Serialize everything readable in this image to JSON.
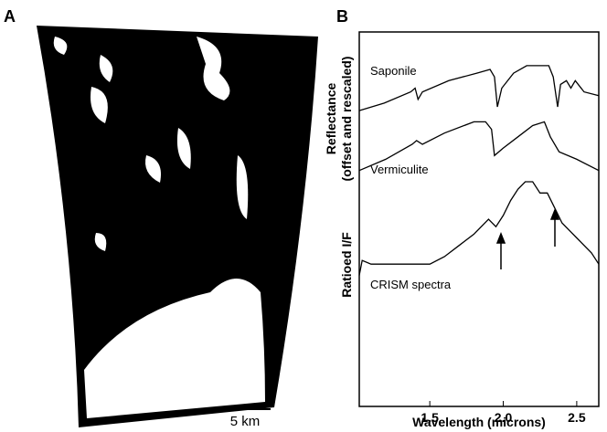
{
  "panel_a": {
    "label": "A",
    "scale_bar": "5 km"
  },
  "chart_data": {
    "type": "line",
    "label": "B",
    "x_label": "Wavelength (microns)",
    "y_label": [
      "Reflectance",
      "(offset and rescaled)"
    ],
    "y2_label": "Ratioed I/F",
    "xlim": [
      1.02,
      2.65
    ],
    "ylim": [
      0,
      100
    ],
    "xticks": [
      1.5,
      {
        "value": 2.0,
        "label": "2.0"
      },
      2.5
    ],
    "series": [
      {
        "name": "Saponile",
        "color": "#000000",
        "x": [
          1.02,
          1.19,
          1.37,
          1.4,
          1.42,
          1.45,
          1.63,
          1.82,
          1.91,
          1.94,
          1.96,
          1.99,
          2.07,
          2.16,
          2.25,
          2.31,
          2.34,
          2.37,
          2.39,
          2.43,
          2.46,
          2.49,
          2.55,
          2.65
        ],
        "values": [
          79,
          81,
          84,
          85,
          82,
          84,
          87,
          89,
          90,
          88,
          80,
          85,
          89,
          91,
          91,
          91,
          88,
          80,
          86,
          87,
          85,
          87,
          84,
          83
        ]
      },
      {
        "name": "Vermiculite",
        "color": "#000000",
        "x": [
          1.02,
          1.2,
          1.38,
          1.41,
          1.45,
          1.6,
          1.8,
          1.88,
          1.92,
          1.94,
          2.0,
          2.1,
          2.2,
          2.28,
          2.32,
          2.38,
          2.5,
          2.65
        ],
        "values": [
          63,
          66,
          70,
          71,
          70,
          73,
          76,
          76,
          74,
          67,
          69,
          72,
          75,
          76,
          72,
          68,
          66,
          63
        ]
      },
      {
        "name": "CRISM spectra",
        "color": "#000000",
        "x": [
          1.02,
          1.04,
          1.1,
          1.2,
          1.3,
          1.4,
          1.5,
          1.6,
          1.7,
          1.8,
          1.9,
          1.95,
          2.0,
          2.05,
          2.1,
          2.15,
          2.2,
          2.25,
          2.3,
          2.35,
          2.4,
          2.5,
          2.6,
          2.65
        ],
        "values": [
          35,
          39,
          38,
          38,
          38,
          38,
          38,
          40,
          43,
          46,
          50,
          48,
          51,
          55,
          58,
          60,
          60,
          57,
          57,
          53,
          49,
          45,
          41,
          38
        ]
      }
    ]
  }
}
